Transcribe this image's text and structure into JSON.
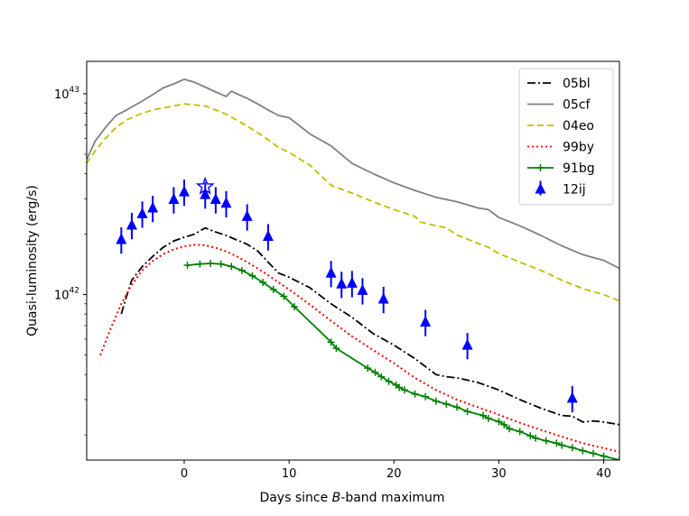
{
  "chart_data": {
    "type": "line",
    "title": "",
    "xlabel_pre": "Days since ",
    "xlabel_italic": "B",
    "xlabel_post": "-band maximum",
    "ylabel": "Quasi-luminosity (erg/s)",
    "xlim": [
      -9.3,
      41.5
    ],
    "ylim": [
      1.5e+41,
      1.45e+43
    ],
    "yscale": "log",
    "x_ticks": [
      0,
      10,
      20,
      30,
      40
    ],
    "x_tick_labels": [
      "0",
      "10",
      "20",
      "30",
      "40"
    ],
    "y_ticks": [
      1e+42,
      1e+43
    ],
    "y_tick_base": "10",
    "y_tick_exponents": [
      "42",
      "43"
    ],
    "grid": false,
    "legend_position": "top-right",
    "series": [
      {
        "name": "05bl",
        "color": "#000000",
        "style": "dashdot",
        "x": [
          -6,
          -5.5,
          -5,
          -4,
          -3,
          -2,
          -1,
          0,
          1,
          2,
          3,
          4,
          5,
          6,
          7,
          8,
          9,
          10,
          12,
          14,
          16,
          18,
          20,
          22,
          24,
          25,
          26,
          27,
          28,
          30,
          32,
          34,
          36,
          37,
          38,
          39,
          40,
          41.5
        ],
        "y": [
          8e+41,
          9.8e+41,
          1.18e+42,
          1.38e+42,
          1.55e+42,
          1.72e+42,
          1.85e+42,
          1.93e+42,
          2e+42,
          2.15e+42,
          2.05e+42,
          1.97e+42,
          1.87e+42,
          1.78e+42,
          1.65e+42,
          1.45e+42,
          1.28e+42,
          1.22e+42,
          1.08e+42,
          9e+41,
          7.7e+41,
          6.4e+41,
          5.6e+41,
          4.8e+41,
          4e+41,
          3.9e+41,
          3.85e+41,
          3.75e+41,
          3.65e+41,
          3.35e+41,
          3e+41,
          2.72e+41,
          2.5e+41,
          2.48e+41,
          2.32e+41,
          2.35e+41,
          2.32e+41,
          2.25e+41
        ]
      },
      {
        "name": "05cf",
        "color": "#808080",
        "style": "solid",
        "x": [
          -9.3,
          -8.5,
          -7.5,
          -6.5,
          -5.5,
          -4,
          -3,
          -2,
          -1,
          0,
          1,
          2,
          3,
          4,
          4.5,
          5,
          6,
          7,
          8,
          9,
          10,
          12,
          14,
          16,
          18,
          20,
          22,
          24,
          26,
          28,
          29,
          30,
          32,
          34,
          36,
          38,
          40,
          41.5
        ],
        "y": [
          4.7e+42,
          5.8e+42,
          6.8e+42,
          7.8e+42,
          8.3e+42,
          9.2e+42,
          9.9e+42,
          1.07e+43,
          1.12e+43,
          1.18e+43,
          1.14e+43,
          1.08e+43,
          1.02e+43,
          9.7e+42,
          1.03e+43,
          1e+43,
          9.5e+42,
          8.9e+42,
          8.3e+42,
          7.8e+42,
          7.6e+42,
          6.3e+42,
          5.5e+42,
          4.5e+42,
          4e+42,
          3.6e+42,
          3.3e+42,
          3.05e+42,
          2.9e+42,
          2.7e+42,
          2.65e+42,
          2.42e+42,
          2.2e+42,
          1.97e+42,
          1.75e+42,
          1.58e+42,
          1.48e+42,
          1.35e+42
        ]
      },
      {
        "name": "04eo",
        "color": "#bfbf00",
        "style": "dashed",
        "x": [
          -9.3,
          -8.5,
          -7.5,
          -6.5,
          -5.5,
          -4,
          -3,
          -2,
          -1,
          0,
          1,
          2,
          3,
          4,
          5,
          6,
          7,
          8,
          9,
          10,
          12,
          14,
          16,
          18,
          20,
          22,
          22.5,
          24,
          25,
          26,
          28,
          29,
          30,
          32,
          34,
          36,
          38,
          40,
          41.5
        ],
        "y": [
          4.5e+42,
          5.2e+42,
          6e+42,
          6.8e+42,
          7.4e+42,
          8e+42,
          8.3e+42,
          8.5e+42,
          8.7e+42,
          8.9e+42,
          8.8e+42,
          8.7e+42,
          8.3e+42,
          7.9e+42,
          7.4e+42,
          6.9e+42,
          6.4e+42,
          5.9e+42,
          5.4e+42,
          5.1e+42,
          4.4e+42,
          3.5e+42,
          3.2e+42,
          2.9e+42,
          2.65e+42,
          2.45e+42,
          2.3e+42,
          2.2e+42,
          2.15e+42,
          1.98e+42,
          1.8e+42,
          1.72e+42,
          1.6e+42,
          1.45e+42,
          1.32e+42,
          1.18e+42,
          1.07e+42,
          1e+42,
          9.3e+41
        ]
      },
      {
        "name": "99by",
        "color": "#ff0000",
        "style": "dotted",
        "x": [
          -8,
          -7,
          -6,
          -5,
          -4,
          -3,
          -2,
          -1,
          0,
          1,
          2,
          3,
          4,
          5,
          6,
          7,
          8,
          9,
          10,
          12,
          14,
          16,
          18,
          20,
          22,
          24,
          26,
          28,
          30,
          32,
          34,
          36,
          38,
          40,
          41.5
        ],
        "y": [
          5e+41,
          6.8e+41,
          9e+41,
          1.12e+42,
          1.32e+42,
          1.47e+42,
          1.59e+42,
          1.68e+42,
          1.74e+42,
          1.77e+42,
          1.76e+42,
          1.71e+42,
          1.64e+42,
          1.55e+42,
          1.45e+42,
          1.35e+42,
          1.25e+42,
          1.15e+42,
          1.06e+42,
          8.9e+41,
          7.4e+41,
          6.2e+41,
          5.3e+41,
          4.55e+41,
          3.85e+41,
          3.35e+41,
          3e+41,
          2.75e+41,
          2.52e+41,
          2.3e+41,
          2.12e+41,
          1.96e+41,
          1.82e+41,
          1.72e+41,
          1.65e+41
        ]
      },
      {
        "name": "91bg",
        "color": "#008000",
        "style": "solid-plus",
        "x": [
          0.3,
          1.5,
          2.5,
          3.5,
          4.5,
          5.5,
          6.5,
          7.5,
          8.5,
          9.5,
          10.5,
          14,
          14.5,
          17.5,
          18.2,
          18.8,
          19.5,
          20.2,
          20.5,
          21,
          22,
          23,
          24,
          25,
          26,
          27,
          28.5,
          29,
          30,
          30.5,
          31,
          32,
          33,
          33.5,
          34.5,
          35.5,
          36,
          37,
          38,
          39,
          40,
          41.5
        ],
        "y": [
          1.4e+42,
          1.42e+42,
          1.43e+42,
          1.42e+42,
          1.38e+42,
          1.32e+42,
          1.24e+42,
          1.15e+42,
          1.06e+42,
          9.8e+41,
          8.7e+41,
          5.8e+41,
          5.4e+41,
          4.3e+41,
          4.1e+41,
          3.9e+41,
          3.7e+41,
          3.55e+41,
          3.45e+41,
          3.35e+41,
          3.2e+41,
          3.1e+41,
          2.95e+41,
          2.85e+41,
          2.75e+41,
          2.62e+41,
          2.5e+41,
          2.42e+41,
          2.33e+41,
          2.25e+41,
          2.15e+41,
          2.08e+41,
          1.98e+41,
          1.93e+41,
          1.87e+41,
          1.82e+41,
          1.78e+41,
          1.73e+41,
          1.67e+41,
          1.62e+41,
          1.57e+41,
          1.5e+41
        ]
      },
      {
        "name": "12ij",
        "color": "#0000ff",
        "style": "markers",
        "x": [
          -6,
          -5,
          -4,
          -3,
          -1,
          0,
          2,
          3,
          4,
          6,
          8,
          14,
          15,
          16,
          17,
          19,
          23,
          27,
          37
        ],
        "y": [
          1.88e+42,
          2.22e+42,
          2.53e+42,
          2.7e+42,
          2.98e+42,
          3.25e+42,
          3.15e+42,
          2.98e+42,
          2.85e+42,
          2.45e+42,
          1.95e+42,
          1.28e+42,
          1.13e+42,
          1.14e+42,
          1.05e+42,
          9.5e+41,
          7.3e+41,
          5.6e+41,
          3.05e+41
        ],
        "yerr_frac": 0.15,
        "star": {
          "x": 2,
          "y": 3.45e+42
        }
      }
    ]
  }
}
